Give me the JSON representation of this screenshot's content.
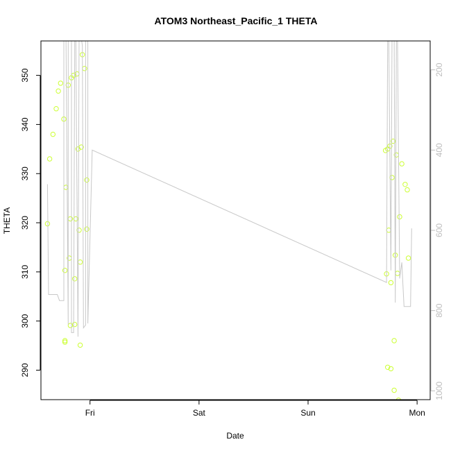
{
  "chart_data": {
    "type": "scatter",
    "title": "ATOM3 Northeast_Pacific_1 THETA",
    "xlabel": "Date",
    "ylabel": "THETA",
    "x_ticks": [
      "Fri",
      "Sat",
      "Sun",
      "Mon"
    ],
    "x_tick_values": [
      1.0,
      2.0,
      3.0,
      4.0
    ],
    "xlim": [
      0.55,
      4.12
    ],
    "ylim": [
      284,
      357
    ],
    "y_ticks": [
      290,
      300,
      310,
      320,
      330,
      340,
      350
    ],
    "y2_ticks": [
      200,
      400,
      600,
      800,
      1000
    ],
    "y2lim": [
      1022,
      128
    ],
    "grid": false,
    "series": [
      {
        "name": "",
        "kind": "points",
        "color": "#ccff33",
        "points": [
          [
            0.61,
            319.8
          ],
          [
            0.63,
            333.0
          ],
          [
            0.66,
            338.0
          ],
          [
            0.69,
            343.2
          ],
          [
            0.71,
            346.8
          ],
          [
            0.73,
            348.4
          ],
          [
            0.76,
            341.1
          ],
          [
            0.77,
            310.3
          ],
          [
            0.77,
            296.0
          ],
          [
            0.77,
            295.7
          ],
          [
            0.78,
            327.2
          ],
          [
            0.8,
            348.0
          ],
          [
            0.81,
            312.8
          ],
          [
            0.82,
            299.1
          ],
          [
            0.82,
            320.8
          ],
          [
            0.83,
            349.5
          ],
          [
            0.85,
            350.0
          ],
          [
            0.86,
            308.6
          ],
          [
            0.86,
            299.3
          ],
          [
            0.87,
            320.8
          ],
          [
            0.88,
            350.3
          ],
          [
            0.89,
            335.0
          ],
          [
            0.9,
            318.5
          ],
          [
            0.91,
            295.1
          ],
          [
            0.91,
            312.0
          ],
          [
            0.92,
            335.4
          ],
          [
            0.93,
            354.2
          ],
          [
            0.95,
            351.4
          ],
          [
            0.97,
            328.7
          ],
          [
            0.97,
            318.7
          ],
          [
            3.71,
            334.7
          ],
          [
            3.72,
            309.6
          ],
          [
            3.73,
            335.0
          ],
          [
            3.73,
            290.6
          ],
          [
            3.74,
            318.5
          ],
          [
            3.75,
            335.6
          ],
          [
            3.76,
            307.8
          ],
          [
            3.76,
            290.3
          ],
          [
            3.77,
            329.2
          ],
          [
            3.78,
            336.6
          ],
          [
            3.79,
            296.0
          ],
          [
            3.79,
            285.9
          ],
          [
            3.8,
            313.4
          ],
          [
            3.81,
            333.8
          ],
          [
            3.82,
            309.7
          ],
          [
            3.83,
            283.9
          ],
          [
            3.84,
            321.2
          ],
          [
            3.86,
            332.0
          ],
          [
            3.89,
            327.8
          ],
          [
            3.91,
            326.7
          ],
          [
            3.92,
            312.8
          ]
        ]
      },
      {
        "name": "",
        "kind": "line",
        "axis": "y2",
        "color": "#c8c8c8",
        "points": [
          [
            0.61,
            485
          ],
          [
            0.62,
            760
          ],
          [
            0.7,
            760
          ],
          [
            0.72,
            775
          ],
          [
            0.76,
            775
          ],
          [
            0.76,
            120
          ],
          [
            0.78,
            120
          ],
          [
            0.8,
            835
          ],
          [
            0.8,
            120
          ],
          [
            0.83,
            120
          ],
          [
            0.83,
            855
          ],
          [
            0.85,
            855
          ],
          [
            0.86,
            120
          ],
          [
            0.87,
            120
          ],
          [
            0.89,
            865
          ],
          [
            0.9,
            120
          ],
          [
            0.92,
            120
          ],
          [
            0.93,
            140
          ],
          [
            0.94,
            843
          ],
          [
            0.96,
            836
          ],
          [
            0.96,
            120
          ],
          [
            0.98,
            120
          ],
          [
            0.98,
            832
          ],
          [
            1.02,
            400
          ],
          [
            3.72,
            730
          ],
          [
            3.73,
            120
          ],
          [
            3.74,
            120
          ],
          [
            3.76,
            700
          ],
          [
            3.77,
            120
          ],
          [
            3.79,
            120
          ],
          [
            3.8,
            780
          ],
          [
            3.81,
            120
          ],
          [
            3.82,
            120
          ],
          [
            3.84,
            720
          ],
          [
            3.86,
            680
          ],
          [
            3.88,
            790
          ],
          [
            3.94,
            790
          ],
          [
            3.95,
            595
          ]
        ]
      }
    ]
  }
}
